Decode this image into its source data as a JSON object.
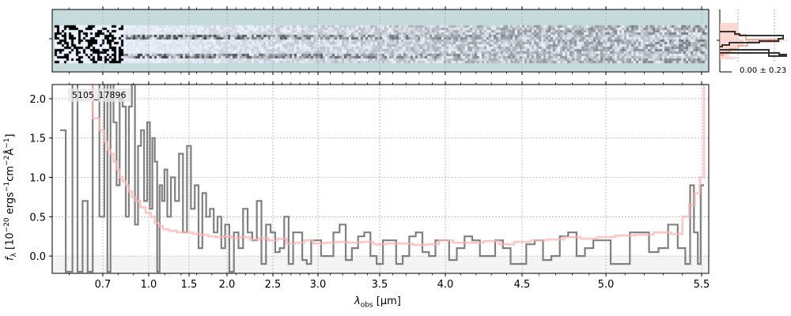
{
  "chart_data": {
    "type": "line",
    "object_id": "5105_17896",
    "xlabel": {
      "symbol": "λ",
      "sub": "obs",
      "unit": " [μm]"
    },
    "ylabel": {
      "symbol": "f",
      "sub": "λ",
      "pre": " [10",
      "exp1": "−20",
      "mid1": " ergs",
      "exp2": "−1",
      "mid2": "cm",
      "exp3": "−2",
      "mid3": "Å",
      "exp4": "−1",
      "post": "]"
    },
    "xticks": [
      "0.7",
      "1.0",
      "1.5",
      "2.0",
      "2.5",
      "3.0",
      "3.5",
      "4.0",
      "4.5",
      "5.0",
      "5.5"
    ],
    "xtick_values": [
      0.7,
      1.0,
      1.5,
      2.0,
      2.5,
      3.0,
      3.5,
      4.0,
      4.5,
      5.0,
      5.5
    ],
    "yticks": [
      "0.0",
      "0.5",
      "1.0",
      "1.5",
      "2.0"
    ],
    "ytick_values": [
      0,
      0.5,
      1.0,
      1.5,
      2.0
    ],
    "xlim": [
      0.55,
      5.53
    ],
    "ylim": [
      -0.22,
      2.18
    ],
    "grid": true,
    "colors": {
      "data": "#808080",
      "model": "#ffb3b3",
      "panel2d_bg": "#c6dbdb",
      "negative_band": "#f4f4f4"
    },
    "series": [
      {
        "name": "observed",
        "style": "steps",
        "points": [
          [
            0.58,
            1.6
          ],
          [
            0.6,
            -0.2
          ],
          [
            0.62,
            2.2
          ],
          [
            0.63,
            -0.2
          ],
          [
            0.65,
            0.7
          ],
          [
            0.66,
            -0.2
          ],
          [
            0.68,
            2.2
          ],
          [
            0.7,
            0.5
          ],
          [
            0.72,
            2.2
          ],
          [
            0.74,
            -0.2
          ],
          [
            0.76,
            2.2
          ],
          [
            0.78,
            1.7
          ],
          [
            0.8,
            0.9
          ],
          [
            0.82,
            2.0
          ],
          [
            0.84,
            1.9
          ],
          [
            0.86,
            0.5
          ],
          [
            0.88,
            1.9
          ],
          [
            0.9,
            2.2
          ],
          [
            0.92,
            0.4
          ],
          [
            0.94,
            1.4
          ],
          [
            0.96,
            1.6
          ],
          [
            0.98,
            0.7
          ],
          [
            1.0,
            1.7
          ],
          [
            1.03,
            0.6
          ],
          [
            1.06,
            1.5
          ],
          [
            1.09,
            1.2
          ],
          [
            1.12,
            -0.2
          ],
          [
            1.15,
            0.9
          ],
          [
            1.18,
            0.7
          ],
          [
            1.21,
            1.1
          ],
          [
            1.25,
            0.5
          ],
          [
            1.3,
            1.0
          ],
          [
            1.35,
            0.7
          ],
          [
            1.4,
            1.3
          ],
          [
            1.45,
            0.3
          ],
          [
            1.5,
            1.4
          ],
          [
            1.55,
            0.6
          ],
          [
            1.6,
            0.9
          ],
          [
            1.65,
            0.1
          ],
          [
            1.7,
            0.8
          ],
          [
            1.75,
            0.5
          ],
          [
            1.8,
            0.6
          ],
          [
            1.85,
            0.3
          ],
          [
            1.9,
            0.5
          ],
          [
            1.95,
            0.1
          ],
          [
            2.0,
            0.4
          ],
          [
            2.05,
            -0.2
          ],
          [
            2.1,
            0.3
          ],
          [
            2.15,
            0.1
          ],
          [
            2.2,
            0.6
          ],
          [
            2.25,
            0.3
          ],
          [
            2.3,
            0.2
          ],
          [
            2.35,
            0.7
          ],
          [
            2.4,
            -0.1
          ],
          [
            2.45,
            0.4
          ],
          [
            2.5,
            0.3
          ],
          [
            2.55,
            0.05
          ],
          [
            2.6,
            0.1
          ],
          [
            2.65,
            0.5
          ],
          [
            2.7,
            -0.1
          ],
          [
            2.75,
            0.3
          ],
          [
            2.8,
            0.3
          ],
          [
            2.85,
            -0.05
          ],
          [
            2.9,
            -0.1
          ],
          [
            2.95,
            0.2
          ],
          [
            3.0,
            0.2
          ],
          [
            3.05,
            0.0
          ],
          [
            3.1,
            0.0
          ],
          [
            3.15,
            0.3
          ],
          [
            3.2,
            0.4
          ],
          [
            3.25,
            -0.05
          ],
          [
            3.3,
            0.1
          ],
          [
            3.35,
            0.25
          ],
          [
            3.4,
            0.3
          ],
          [
            3.45,
            0.0
          ],
          [
            3.5,
            -0.1
          ],
          [
            3.55,
            0.2
          ],
          [
            3.6,
            0.2
          ],
          [
            3.65,
            -0.1
          ],
          [
            3.7,
            0.0
          ],
          [
            3.75,
            0.25
          ],
          [
            3.8,
            0.3
          ],
          [
            3.85,
            0.05
          ],
          [
            3.9,
            0.0
          ],
          [
            3.95,
            0.2
          ],
          [
            4.0,
            0.2
          ],
          [
            4.05,
            -0.05
          ],
          [
            4.1,
            0.1
          ],
          [
            4.15,
            0.25
          ],
          [
            4.2,
            0.2
          ],
          [
            4.25,
            0.0
          ],
          [
            4.3,
            0.0
          ],
          [
            4.35,
            0.2
          ],
          [
            4.4,
            0.1
          ],
          [
            4.45,
            -0.1
          ],
          [
            4.5,
            -0.1
          ],
          [
            4.55,
            0.15
          ],
          [
            4.6,
            0.2
          ],
          [
            4.65,
            -0.05
          ],
          [
            4.7,
            0.0
          ],
          [
            4.75,
            0.25
          ],
          [
            4.8,
            0.3
          ],
          [
            4.85,
            0.0
          ],
          [
            4.9,
            0.1
          ],
          [
            4.95,
            0.2
          ],
          [
            5.0,
            0.2
          ],
          [
            5.05,
            -0.1
          ],
          [
            5.1,
            -0.1
          ],
          [
            5.15,
            0.3
          ],
          [
            5.2,
            0.3
          ],
          [
            5.25,
            0.05
          ],
          [
            5.3,
            0.1
          ],
          [
            5.35,
            0.4
          ],
          [
            5.4,
            0.1
          ],
          [
            5.43,
            -0.1
          ],
          [
            5.45,
            0.9
          ],
          [
            5.47,
            0.3
          ],
          [
            5.49,
            -0.1
          ],
          [
            5.5,
            0.9
          ]
        ]
      },
      {
        "name": "model",
        "style": "steps",
        "points": [
          [
            0.66,
            2.2
          ],
          [
            0.68,
            1.75
          ],
          [
            0.7,
            1.6
          ],
          [
            0.72,
            1.45
          ],
          [
            0.74,
            1.35
          ],
          [
            0.76,
            1.3
          ],
          [
            0.78,
            1.2
          ],
          [
            0.8,
            1.1
          ],
          [
            0.82,
            1.0
          ],
          [
            0.84,
            0.95
          ],
          [
            0.86,
            0.9
          ],
          [
            0.88,
            0.82
          ],
          [
            0.9,
            0.75
          ],
          [
            0.93,
            0.7
          ],
          [
            0.96,
            0.62
          ],
          [
            1.0,
            0.55
          ],
          [
            1.05,
            0.5
          ],
          [
            1.1,
            0.42
          ],
          [
            1.15,
            0.38
          ],
          [
            1.2,
            0.34
          ],
          [
            1.3,
            0.32
          ],
          [
            1.4,
            0.3
          ],
          [
            1.5,
            0.3
          ],
          [
            1.6,
            0.28
          ],
          [
            1.7,
            0.27
          ],
          [
            1.8,
            0.25
          ],
          [
            1.9,
            0.24
          ],
          [
            2.0,
            0.25
          ],
          [
            2.1,
            0.23
          ],
          [
            2.2,
            0.24
          ],
          [
            2.3,
            0.21
          ],
          [
            2.4,
            0.23
          ],
          [
            2.5,
            0.2
          ],
          [
            2.6,
            0.22
          ],
          [
            2.7,
            0.16
          ],
          [
            2.8,
            0.17
          ],
          [
            2.9,
            0.2
          ],
          [
            3.0,
            0.16
          ],
          [
            3.1,
            0.17
          ],
          [
            3.2,
            0.18
          ],
          [
            3.3,
            0.17
          ],
          [
            3.4,
            0.18
          ],
          [
            3.5,
            0.15
          ],
          [
            3.6,
            0.16
          ],
          [
            3.7,
            0.16
          ],
          [
            3.8,
            0.14
          ],
          [
            3.9,
            0.15
          ],
          [
            4.0,
            0.2
          ],
          [
            4.1,
            0.17
          ],
          [
            4.2,
            0.17
          ],
          [
            4.3,
            0.19
          ],
          [
            4.4,
            0.15
          ],
          [
            4.5,
            0.18
          ],
          [
            4.6,
            0.2
          ],
          [
            4.7,
            0.21
          ],
          [
            4.8,
            0.24
          ],
          [
            4.9,
            0.22
          ],
          [
            5.0,
            0.24
          ],
          [
            5.1,
            0.26
          ],
          [
            5.2,
            0.27
          ],
          [
            5.3,
            0.3
          ],
          [
            5.38,
            0.28
          ],
          [
            5.42,
            0.5
          ],
          [
            5.45,
            0.65
          ],
          [
            5.48,
            0.8
          ],
          [
            5.5,
            1.0
          ],
          [
            5.52,
            2.2
          ]
        ]
      }
    ]
  },
  "side_panel": {
    "label": "0.00 ± 0.23"
  }
}
